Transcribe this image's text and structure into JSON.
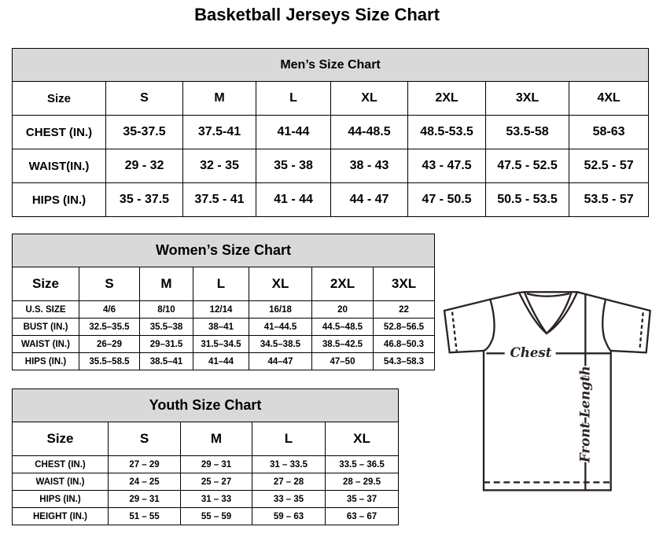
{
  "title": "Basketball Jerseys Size Chart",
  "men": {
    "caption": "Men’s Size Chart",
    "header": [
      "Size",
      "S",
      "M",
      "L",
      "XL",
      "2XL",
      "3XL",
      "4XL"
    ],
    "rows": [
      [
        "CHEST (IN.)",
        "35-37.5",
        "37.5-41",
        "41-44",
        "44-48.5",
        "48.5-53.5",
        "53.5-58",
        "58-63"
      ],
      [
        "WAIST(IN.)",
        "29 - 32",
        "32 - 35",
        "35 - 38",
        "38 - 43",
        "43 - 47.5",
        "47.5 - 52.5",
        "52.5 - 57"
      ],
      [
        "HIPS (IN.)",
        "35 - 37.5",
        "37.5 - 41",
        "41 - 44",
        "44 - 47",
        "47 - 50.5",
        "50.5 - 53.5",
        "53.5 - 57"
      ]
    ]
  },
  "women": {
    "caption": "Women’s Size Chart",
    "header": [
      "Size",
      "S",
      "M",
      "L",
      "XL",
      "2XL",
      "3XL"
    ],
    "rows": [
      [
        "U.S. SIZE",
        "4/6",
        "8/10",
        "12/14",
        "16/18",
        "20",
        "22"
      ],
      [
        "BUST (IN.)",
        "32.5–35.5",
        "35.5–38",
        "38–41",
        "41–44.5",
        "44.5–48.5",
        "52.8–56.5"
      ],
      [
        "WAIST (IN.)",
        "26–29",
        "29–31.5",
        "31.5–34.5",
        "34.5–38.5",
        "38.5–42.5",
        "46.8–50.3"
      ],
      [
        "HIPS (IN.)",
        "35.5–58.5",
        "38.5–41",
        "41–44",
        "44–47",
        "47–50",
        "54.3–58.3"
      ]
    ]
  },
  "youth": {
    "caption": "Youth Size Chart",
    "header": [
      "Size",
      "S",
      "M",
      "L",
      "XL"
    ],
    "rows": [
      [
        "CHEST (IN.)",
        "27 – 29",
        "29 – 31",
        "31 – 33.5",
        "33.5 – 36.5"
      ],
      [
        "WAIST (IN.)",
        "24 – 25",
        "25 – 27",
        "27 – 28",
        "28 – 29.5"
      ],
      [
        "HIPS (IN.)",
        "29 – 31",
        "31 – 33",
        "33 – 35",
        "35 – 37"
      ],
      [
        "HEIGHT (IN.)",
        "51 – 55",
        "55 – 59",
        "59 – 63",
        "63 – 67"
      ]
    ]
  },
  "diagram": {
    "chest_label": "Chest",
    "length_label": "Front Length"
  },
  "colors": {
    "caption_bg": "#d9d9d9",
    "line": "#2b2321"
  }
}
